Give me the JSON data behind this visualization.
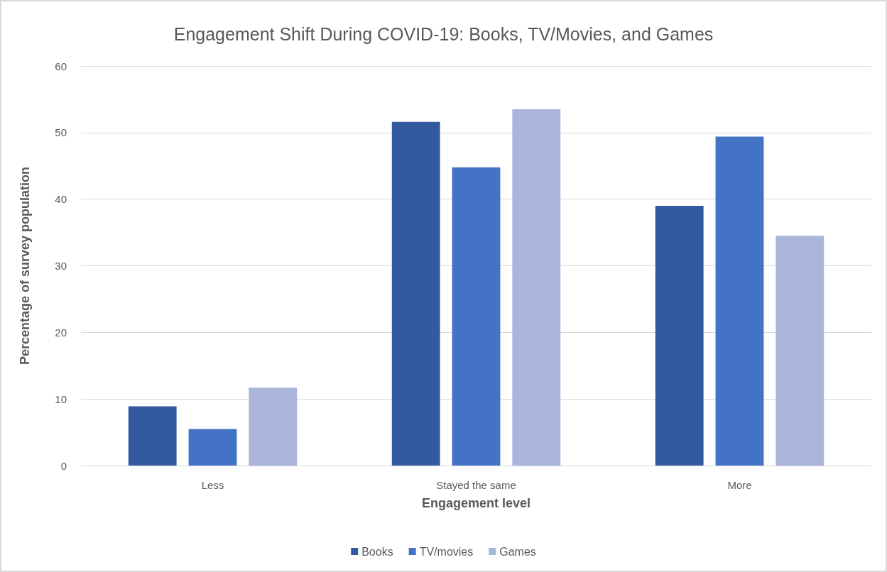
{
  "chart_data": {
    "type": "bar",
    "title": "Engagement Shift During COVID-19: Books, TV/Movies, and Games",
    "xlabel": "Engagement level",
    "ylabel": "Percentage of survey population",
    "categories": [
      "Less",
      "Stayed the same",
      "More"
    ],
    "series": [
      {
        "name": "Books",
        "color": "#335aa1",
        "values": [
          8.9,
          51.6,
          39.0
        ]
      },
      {
        "name": "TV/movies",
        "color": "#4472c4",
        "values": [
          5.5,
          44.8,
          49.4
        ]
      },
      {
        "name": "Games",
        "color": "#a9b5da",
        "values": [
          11.7,
          53.5,
          34.5
        ]
      }
    ],
    "ylim": [
      0,
      60
    ],
    "yticks": [
      0,
      10,
      20,
      30,
      40,
      50,
      60
    ],
    "grid": "y",
    "legend": "bottom"
  }
}
